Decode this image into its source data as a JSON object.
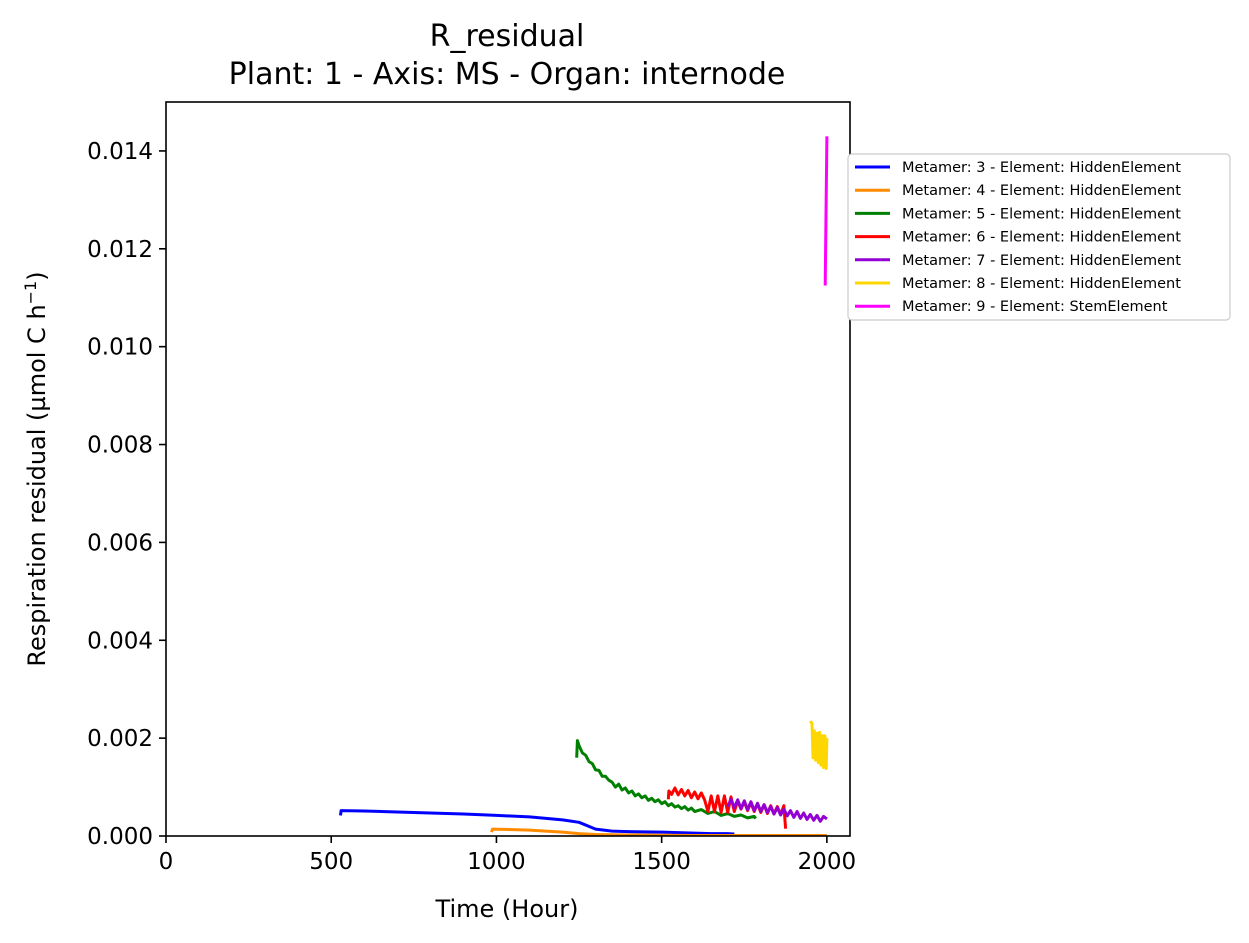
{
  "chart_data": {
    "type": "line",
    "title": "R_residual",
    "subtitle": "Plant: 1 - Axis: MS - Organ: internode",
    "xlabel": "Time (Hour)",
    "ylabel_main": "Respiration residual (µmol C h",
    "ylabel_exp": "−1",
    "ylabel_close": ")",
    "xlim": [
      0,
      2070
    ],
    "ylim": [
      0,
      0.015
    ],
    "x_ticks": [
      0,
      500,
      1000,
      1500,
      2000
    ],
    "x_tick_labels": [
      "0",
      "500",
      "1000",
      "1500",
      "2000"
    ],
    "y_ticks": [
      0,
      0.002,
      0.004,
      0.006,
      0.008,
      0.01,
      0.012,
      0.014
    ],
    "y_tick_labels": [
      "0.000",
      "0.002",
      "0.004",
      "0.006",
      "0.008",
      "0.010",
      "0.012",
      "0.014"
    ],
    "grid": false,
    "legend_position": "outside-right",
    "series": [
      {
        "name": "Metamer: 3 - Element: HiddenElement",
        "color": "#0000ff",
        "points": [
          [
            528,
            0.00042
          ],
          [
            530,
            0.00052
          ],
          [
            600,
            0.00051
          ],
          [
            700,
            0.00049
          ],
          [
            800,
            0.00047
          ],
          [
            900,
            0.00045
          ],
          [
            1000,
            0.00042
          ],
          [
            1100,
            0.00039
          ],
          [
            1200,
            0.00033
          ],
          [
            1250,
            0.00028
          ],
          [
            1300,
            0.00014
          ],
          [
            1350,
            0.0001
          ],
          [
            1400,
            9e-05
          ],
          [
            1500,
            8e-05
          ],
          [
            1600,
            6e-05
          ],
          [
            1650,
            5e-05
          ],
          [
            1700,
            5e-05
          ],
          [
            1720,
            4e-05
          ]
        ]
      },
      {
        "name": "Metamer: 4 - Element: HiddenElement",
        "color": "#ff8c00",
        "points": [
          [
            985,
            8e-05
          ],
          [
            988,
            0.00014
          ],
          [
            1050,
            0.00013
          ],
          [
            1100,
            0.00012
          ],
          [
            1150,
            0.0001
          ],
          [
            1200,
            8e-05
          ],
          [
            1250,
            5e-05
          ],
          [
            1300,
            3e-05
          ],
          [
            1400,
            2e-05
          ],
          [
            1600,
            1e-05
          ],
          [
            1800,
            1e-05
          ],
          [
            2000,
            1e-05
          ]
        ]
      },
      {
        "name": "Metamer: 5 - Element: HiddenElement",
        "color": "#008000",
        "points": [
          [
            1243,
            0.0016
          ],
          [
            1245,
            0.00195
          ],
          [
            1250,
            0.00185
          ],
          [
            1260,
            0.0017
          ],
          [
            1270,
            0.00165
          ],
          [
            1280,
            0.00152
          ],
          [
            1290,
            0.00148
          ],
          [
            1300,
            0.00135
          ],
          [
            1310,
            0.00134
          ],
          [
            1320,
            0.00122
          ],
          [
            1330,
            0.00122
          ],
          [
            1340,
            0.00114
          ],
          [
            1350,
            0.0011
          ],
          [
            1360,
            0.001
          ],
          [
            1370,
            0.00106
          ],
          [
            1380,
            0.00094
          ],
          [
            1390,
            0.00098
          ],
          [
            1400,
            0.00088
          ],
          [
            1410,
            0.00092
          ],
          [
            1420,
            0.00082
          ],
          [
            1430,
            0.00086
          ],
          [
            1440,
            0.00078
          ],
          [
            1450,
            0.00082
          ],
          [
            1460,
            0.00073
          ],
          [
            1470,
            0.00077
          ],
          [
            1480,
            0.0007
          ],
          [
            1490,
            0.00074
          ],
          [
            1500,
            0.00066
          ],
          [
            1510,
            0.0007
          ],
          [
            1520,
            0.00062
          ],
          [
            1530,
            0.00066
          ],
          [
            1540,
            0.00059
          ],
          [
            1550,
            0.00062
          ],
          [
            1560,
            0.00056
          ],
          [
            1570,
            0.0006
          ],
          [
            1580,
            0.00053
          ],
          [
            1590,
            0.00057
          ],
          [
            1600,
            0.0005
          ],
          [
            1620,
            0.00054
          ],
          [
            1640,
            0.00046
          ],
          [
            1660,
            0.0005
          ],
          [
            1680,
            0.00042
          ],
          [
            1700,
            0.00046
          ],
          [
            1720,
            0.0004
          ],
          [
            1740,
            0.00043
          ],
          [
            1760,
            0.00037
          ],
          [
            1780,
            0.0004
          ],
          [
            1785,
            0.00036
          ]
        ]
      },
      {
        "name": "Metamer: 6 - Element: HiddenElement",
        "color": "#ff0000",
        "points": [
          [
            1520,
            0.00075
          ],
          [
            1522,
            0.00092
          ],
          [
            1530,
            0.00085
          ],
          [
            1540,
            0.00098
          ],
          [
            1550,
            0.00084
          ],
          [
            1560,
            0.00095
          ],
          [
            1570,
            0.00082
          ],
          [
            1580,
            0.00093
          ],
          [
            1590,
            0.00078
          ],
          [
            1600,
            0.0009
          ],
          [
            1610,
            0.00076
          ],
          [
            1620,
            0.00088
          ],
          [
            1630,
            0.00074
          ],
          [
            1640,
            0.0005
          ],
          [
            1650,
            0.00082
          ],
          [
            1660,
            0.0005
          ],
          [
            1670,
            0.00082
          ],
          [
            1680,
            0.00048
          ],
          [
            1690,
            0.00082
          ],
          [
            1700,
            0.00048
          ],
          [
            1710,
            0.0008
          ],
          [
            1720,
            0.0005
          ],
          [
            1730,
            0.00072
          ],
          [
            1740,
            0.00055
          ],
          [
            1750,
            0.0007
          ],
          [
            1760,
            0.00052
          ],
          [
            1770,
            0.00068
          ],
          [
            1780,
            0.0005
          ],
          [
            1790,
            0.00066
          ],
          [
            1800,
            0.00048
          ],
          [
            1810,
            0.00064
          ],
          [
            1820,
            0.00046
          ],
          [
            1830,
            0.00062
          ],
          [
            1840,
            0.00045
          ],
          [
            1850,
            0.0006
          ],
          [
            1860,
            0.00044
          ],
          [
            1870,
            0.00062
          ],
          [
            1875,
            0.00015
          ]
        ]
      },
      {
        "name": "Metamer: 7 - Element: HiddenElement",
        "color": "#9400d3",
        "points": [
          [
            1700,
            0.0006
          ],
          [
            1710,
            0.00075
          ],
          [
            1720,
            0.00058
          ],
          [
            1730,
            0.00074
          ],
          [
            1740,
            0.00056
          ],
          [
            1750,
            0.00072
          ],
          [
            1760,
            0.00054
          ],
          [
            1770,
            0.0007
          ],
          [
            1780,
            0.00052
          ],
          [
            1790,
            0.00067
          ],
          [
            1800,
            0.0005
          ],
          [
            1810,
            0.00064
          ],
          [
            1820,
            0.00048
          ],
          [
            1830,
            0.0006
          ],
          [
            1840,
            0.00045
          ],
          [
            1850,
            0.00058
          ],
          [
            1860,
            0.00043
          ],
          [
            1870,
            0.00055
          ],
          [
            1880,
            0.00041
          ],
          [
            1890,
            0.00052
          ],
          [
            1900,
            0.00038
          ],
          [
            1910,
            0.0005
          ],
          [
            1920,
            0.00036
          ],
          [
            1930,
            0.00047
          ],
          [
            1940,
            0.00034
          ],
          [
            1950,
            0.00044
          ],
          [
            1960,
            0.00032
          ],
          [
            1970,
            0.00042
          ],
          [
            1980,
            0.0003
          ],
          [
            1990,
            0.0004
          ],
          [
            2000,
            0.00035
          ]
        ]
      },
      {
        "name": "Metamer: 8 - Element: HiddenElement",
        "color": "#ffd700",
        "points": [
          [
            1950,
            0.00235
          ],
          [
            1955,
            0.0023
          ],
          [
            1958,
            0.0016
          ],
          [
            1962,
            0.00215
          ],
          [
            1966,
            0.00155
          ],
          [
            1970,
            0.0021
          ],
          [
            1974,
            0.0015
          ],
          [
            1978,
            0.00212
          ],
          [
            1982,
            0.00145
          ],
          [
            1986,
            0.00205
          ],
          [
            1990,
            0.0014
          ],
          [
            1994,
            0.00205
          ],
          [
            1998,
            0.00138
          ],
          [
            2000,
            0.002
          ]
        ]
      },
      {
        "name": "Metamer: 9 - Element: StemElement",
        "color": "#ff00ff",
        "points": [
          [
            1995,
            0.01125
          ],
          [
            2000,
            0.0143
          ]
        ]
      }
    ]
  }
}
